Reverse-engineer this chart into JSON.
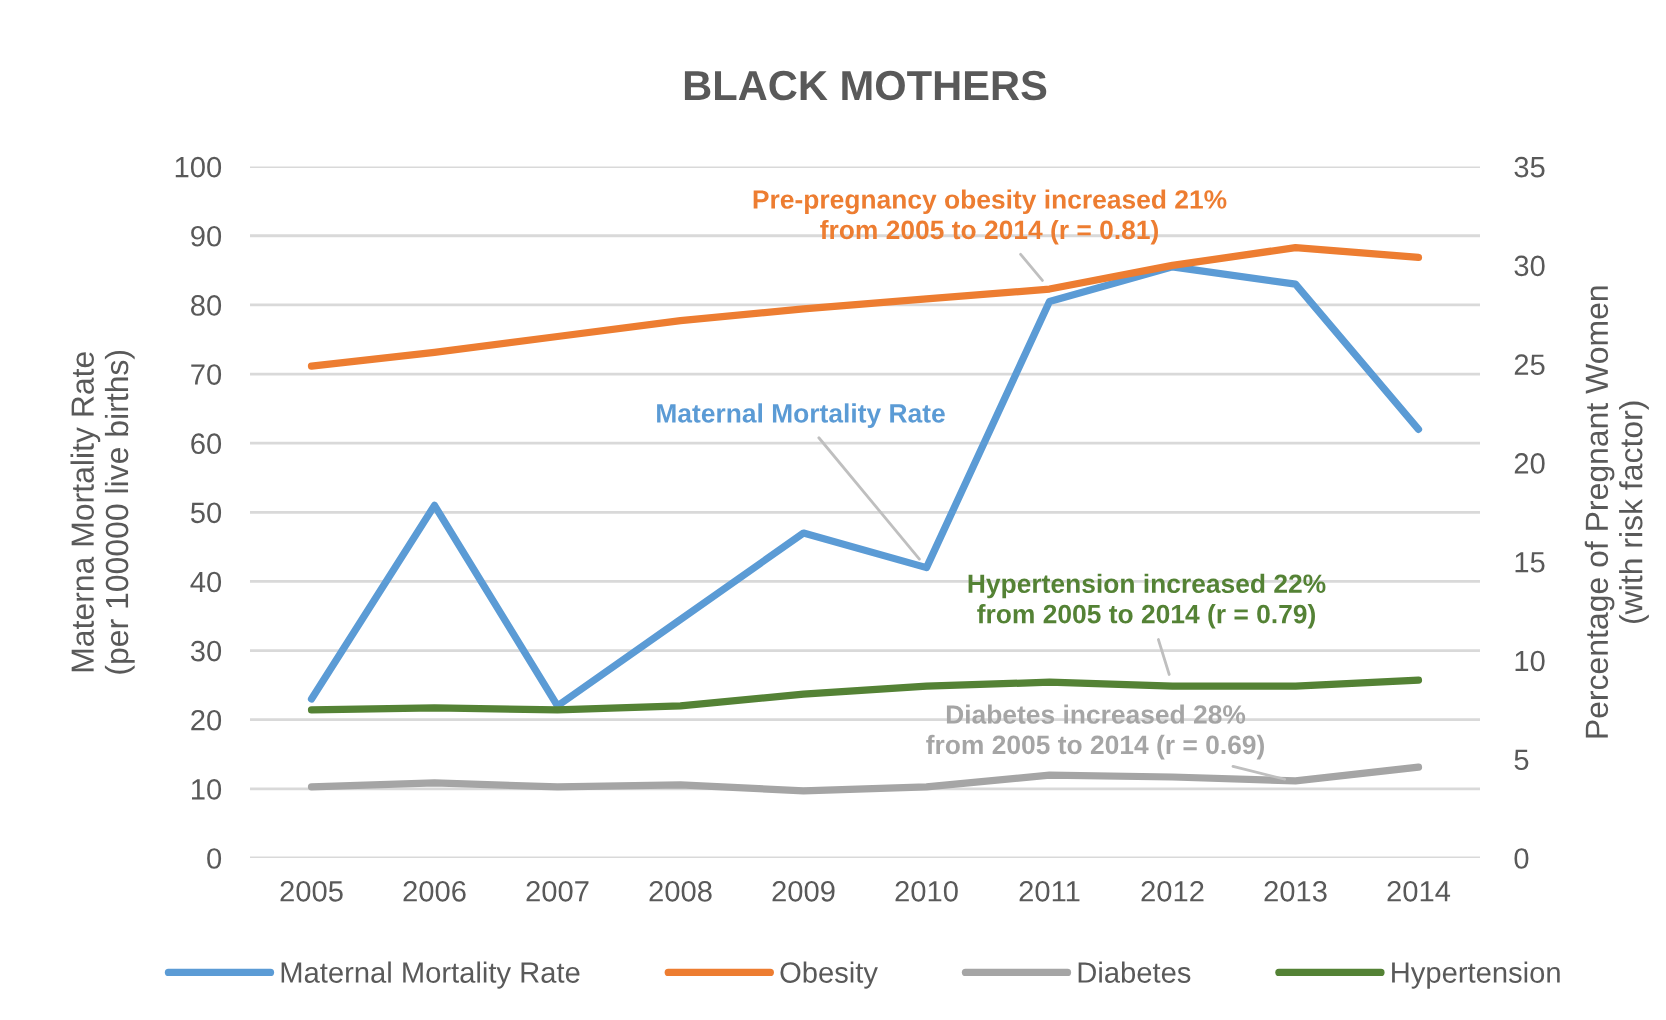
{
  "chart_data": {
    "type": "line",
    "title": "BLACK MOTHERS",
    "ylabel": "Materna Mortality Rate\n(per 100000 live births)",
    "y2label": "Percentage of Pregnant Women\n(with risk factor)",
    "categories": [
      "2005",
      "2006",
      "2007",
      "2008",
      "2009",
      "2010",
      "2011",
      "2012",
      "2013",
      "2014"
    ],
    "series": [
      {
        "name": "Maternal Mortality Rate",
        "color": "#5b9bd5",
        "values": [
          23,
          51,
          22,
          34.5,
          47,
          42,
          80.5,
          85.5,
          83,
          62
        ]
      },
      {
        "name": "Obesity",
        "color": "#ed7d31",
        "axis": "y2",
        "values": [
          24.9,
          25.6,
          26.4,
          27.2,
          27.8,
          28.3,
          28.8,
          30.0,
          30.9,
          30.4
        ]
      },
      {
        "name": "Diabetes",
        "color": "#a5a5a5",
        "axis": "y2",
        "values": [
          3.6,
          3.8,
          3.6,
          3.7,
          3.4,
          3.6,
          4.2,
          4.1,
          3.9,
          4.6
        ]
      },
      {
        "name": "Hypertension",
        "color": "#548235",
        "axis": "y2",
        "values": [
          7.5,
          7.6,
          7.5,
          7.7,
          8.3,
          8.7,
          8.9,
          8.7,
          8.7,
          9.0
        ]
      }
    ],
    "ylim": [
      0,
      100
    ],
    "yticks": [
      0,
      10,
      20,
      30,
      40,
      50,
      60,
      70,
      80,
      90,
      100
    ],
    "y2lim": [
      0,
      35
    ],
    "y2ticks": [
      0,
      5,
      10,
      15,
      20,
      25,
      30,
      35
    ],
    "grid": "y",
    "legend": "bottom",
    "line_style": "solid",
    "annotations": [
      {
        "text": "Pre-pregnancy obesity increased 21%\nfrom 2005 to 2014 (r = 0.81)",
        "x": "2011",
        "y": 82.3
      },
      {
        "text": "Maternal Mortality Rate",
        "x": "2010",
        "y": 42
      },
      {
        "text": "Hypertension increased 22%\nfrom 2005 to 2014 (r = 0.79)",
        "x": "2012",
        "y": 25
      },
      {
        "text": "Diabetes increased 28%\nfrom 2005 to 2014 (r = 0.69)",
        "x": "2013",
        "y": 11
      }
    ]
  }
}
